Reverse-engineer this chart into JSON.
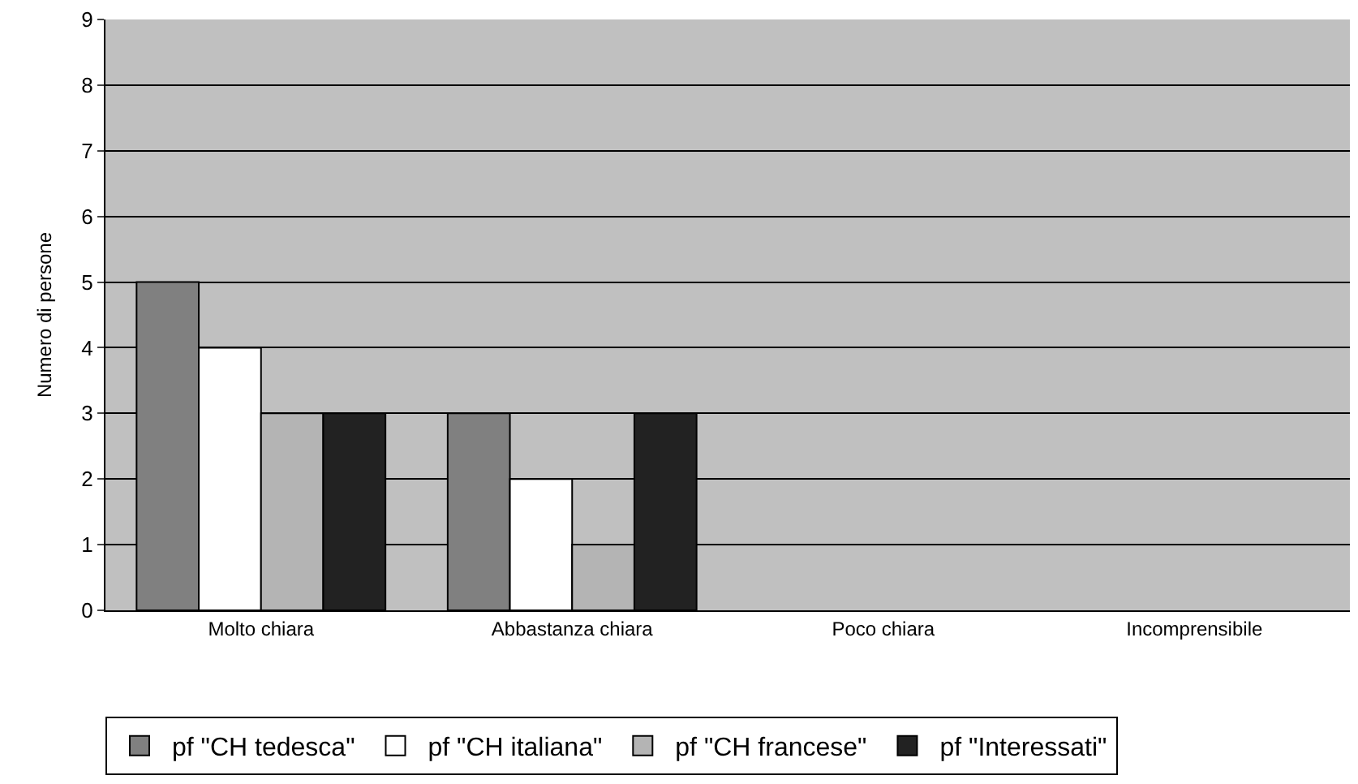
{
  "chart_data": {
    "type": "bar",
    "ylabel": "Numero di persone",
    "categories": [
      "Molto chiara",
      "Abbastanza chiara",
      "Poco chiara",
      "Incomprensibile"
    ],
    "series": [
      {
        "name": "pf \"CH tedesca\"",
        "color": "#808080",
        "values": [
          5,
          3,
          null,
          null
        ]
      },
      {
        "name": "pf \"CH italiana\"",
        "color": "#ffffff",
        "values": [
          4,
          2,
          null,
          null
        ]
      },
      {
        "name": "pf \"CH francese\"",
        "color": "#b4b4b4",
        "values": [
          3,
          1,
          null,
          null
        ]
      },
      {
        "name": "pf \"Interessati\"",
        "color": "#222222",
        "values": [
          3,
          3,
          null,
          null
        ]
      }
    ],
    "ylim": [
      0,
      9
    ],
    "yticks": [
      0,
      1,
      2,
      3,
      4,
      5,
      6,
      7,
      8,
      9
    ],
    "grid": "y",
    "legend": "bottom"
  }
}
